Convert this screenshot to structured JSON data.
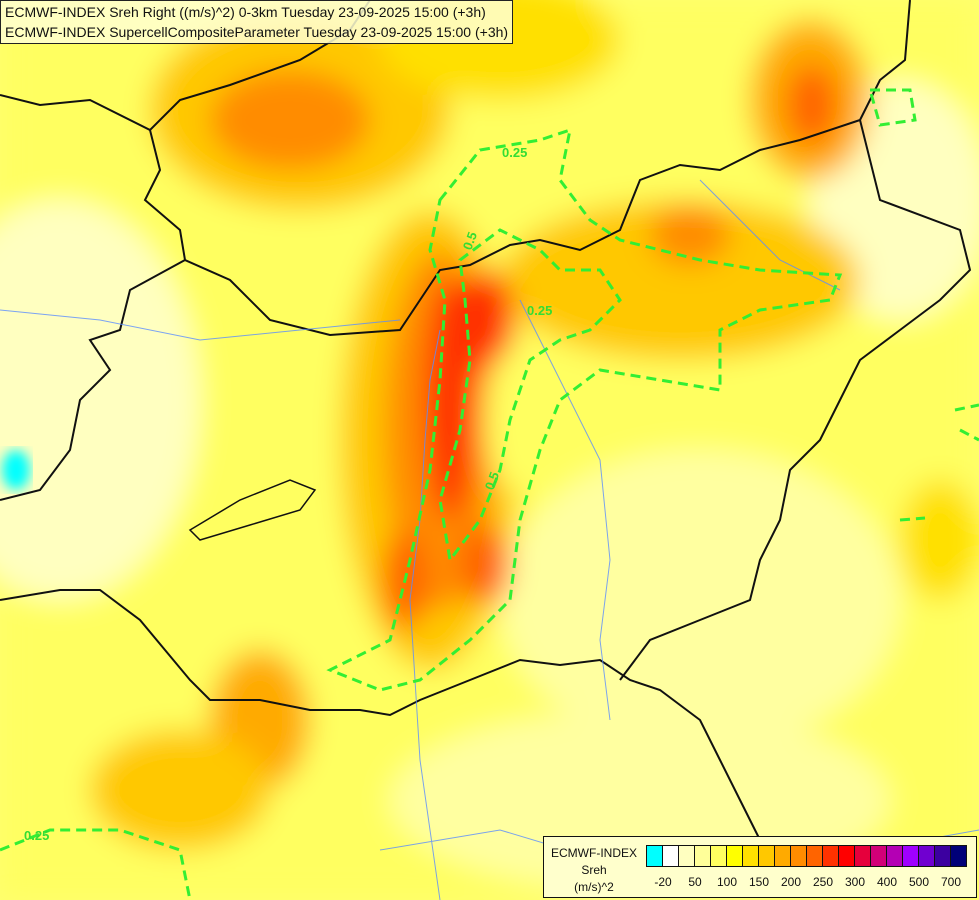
{
  "header": {
    "line1": "ECMWF-INDEX Sreh Right ((m/s)^2) 0-3km Tuesday 23-09-2025 15:00 (+3h)",
    "line2": "ECMWF-INDEX SupercellCompositeParameter Tuesday 23-09-2025 15:00 (+3h)"
  },
  "legend": {
    "source": "ECMWF-INDEX",
    "variable": "Sreh",
    "unit": "(m/s)^2",
    "colors": [
      "#00ffff",
      "#ffffff",
      "#ffffc0",
      "#ffff99",
      "#ffff60",
      "#ffff00",
      "#ffe000",
      "#ffc800",
      "#ffaa00",
      "#ff8c00",
      "#ff6400",
      "#ff3200",
      "#ff0000",
      "#e6003c",
      "#d20078",
      "#b400b4",
      "#a000ff",
      "#7000d0",
      "#3c00a0",
      "#000078"
    ],
    "ticks": [
      "-20",
      "50",
      "100",
      "150",
      "200",
      "250",
      "300",
      "400",
      "500",
      "700"
    ]
  },
  "contours": {
    "color": "#33ee33",
    "labels": [
      "0.25",
      "0.5",
      "0.25",
      "0.5",
      "0.25"
    ]
  }
}
